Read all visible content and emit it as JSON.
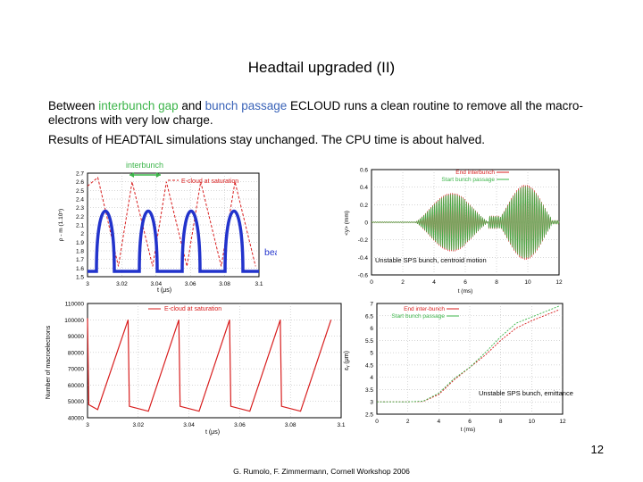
{
  "slide": {
    "title": "Headtail upgraded (II)",
    "para1": {
      "t1": "Between ",
      "t2": "interbunch gap",
      "t3": " and ",
      "t4": "bunch passage",
      "t5": " ECLOUD runs a clean  routine to remove all the macro-electrons with very low charge."
    },
    "para2": "Results of HEADTAIL simulations stay unchanged. The CPU time is about halved.",
    "page_number": "12",
    "footer": "G. Rumolo, F. Zimmermann, Cornell Workshop 2006"
  },
  "colors": {
    "green": "#3cb54a",
    "blue": "#3a63b8",
    "red": "#d81e1e",
    "bunch": "#2233cc",
    "grid": "#9a9a9a"
  },
  "chart_data": [
    {
      "type": "line",
      "ylabel": "ρ - m (1.10⁵)",
      "xlabel": "t (μs)",
      "legend": [
        "E-cloud at saturation"
      ],
      "annotations": [
        "interbunch",
        "beam"
      ],
      "x_ticks": [
        "3",
        "3.02",
        "3.04",
        "3.06",
        "3.08",
        "3.1"
      ],
      "y_ticks": [
        "2.7",
        "2.6",
        "2.5",
        "2.4",
        "2.3",
        "2.2",
        "2.1",
        "2",
        "1.9",
        "1.8",
        "1.7",
        "1.6",
        "1.5"
      ],
      "xlim": [
        3,
        3.1
      ],
      "ylim": [
        1.5,
        2.7
      ],
      "series": [
        {
          "name": "E-cloud at saturation",
          "x": [
            3.0,
            3.006,
            3.018,
            3.026,
            3.038,
            3.046,
            3.058,
            3.066,
            3.078,
            3.086,
            3.098
          ],
          "y": [
            2.55,
            2.65,
            1.62,
            2.6,
            1.62,
            2.6,
            1.62,
            2.6,
            1.62,
            2.6,
            1.62
          ]
        }
      ]
    },
    {
      "type": "line",
      "ylabel": "<y> (mm)",
      "xlabel": "t (ms)",
      "legend": [
        "End interbunch",
        "Start bunch passage"
      ],
      "annotations": [
        "Unstable SPS bunch, centroid motion"
      ],
      "x_ticks": [
        "0",
        "2",
        "4",
        "6",
        "8",
        "10",
        "12"
      ],
      "y_ticks": [
        "0.6",
        "0.4",
        "0.2",
        "0",
        "-0.2",
        "-0.4",
        "-0.6"
      ],
      "xlim": [
        0,
        12
      ],
      "ylim": [
        -0.6,
        0.6
      ]
    },
    {
      "type": "line",
      "ylabel": "Number of macroelectrons",
      "xlabel": "t (μs)",
      "legend": [
        "E-cloud at saturation"
      ],
      "x_ticks": [
        "3",
        "3.02",
        "3.04",
        "3.06",
        "3.08",
        "3.1"
      ],
      "y_ticks": [
        "110000",
        "100000",
        "90000",
        "80000",
        "70000",
        "60000",
        "50000",
        "40000"
      ],
      "xlim": [
        3,
        3.1
      ],
      "ylim": [
        40000,
        110000
      ],
      "series": [
        {
          "name": "E-cloud at saturation",
          "x": [
            3.0,
            3.004,
            3.016,
            3.024,
            3.036,
            3.044,
            3.056,
            3.064,
            3.076,
            3.084,
            3.096
          ],
          "y": [
            101000,
            45000,
            100000,
            44000,
            100000,
            44000,
            100000,
            44000,
            100000,
            44000,
            100000
          ]
        }
      ]
    },
    {
      "type": "line",
      "ylabel": "εᵧ (μm)",
      "xlabel": "t (ms)",
      "legend": [
        "End inter-bunch",
        "Start bunch passage"
      ],
      "annotations": [
        "Unstable SPS bunch, emittance evolution"
      ],
      "x_ticks": [
        "0",
        "2",
        "4",
        "6",
        "8",
        "10",
        "12"
      ],
      "y_ticks": [
        "7",
        "6.5",
        "6",
        "5.5",
        "5",
        "4.5",
        "4",
        "3.5",
        "3",
        "2.5"
      ],
      "xlim": [
        0,
        12
      ],
      "ylim": [
        2.5,
        7
      ],
      "series": [
        {
          "name": "End inter-bunch",
          "x": [
            0,
            2,
            3,
            4,
            5,
            6,
            7,
            8,
            9,
            10,
            11,
            11.8
          ],
          "y": [
            3.0,
            3.0,
            3.02,
            3.3,
            3.9,
            4.4,
            4.9,
            5.5,
            6.0,
            6.3,
            6.55,
            6.75
          ]
        },
        {
          "name": "Start bunch passage",
          "x": [
            0,
            2,
            3,
            4,
            5,
            6,
            7,
            8,
            9,
            10,
            11,
            11.8
          ],
          "y": [
            3.0,
            3.0,
            3.03,
            3.35,
            3.95,
            4.4,
            5.0,
            5.65,
            6.2,
            6.45,
            6.7,
            6.9
          ]
        }
      ]
    }
  ]
}
